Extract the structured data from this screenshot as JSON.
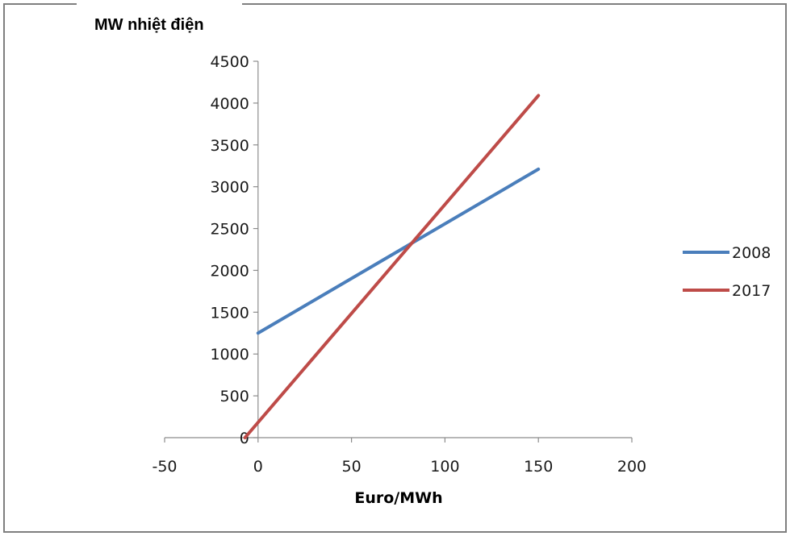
{
  "chart_data": {
    "type": "line",
    "title": "",
    "ylabel": "MW nhiệt điện",
    "xlabel": "Euro/MWh",
    "xlim": [
      -50,
      200
    ],
    "ylim": [
      0,
      4500
    ],
    "x_ticks": [
      -50,
      0,
      50,
      100,
      150,
      200
    ],
    "y_ticks": [
      0,
      500,
      1000,
      1500,
      2000,
      2500,
      3000,
      3500,
      4000,
      4500
    ],
    "grid": false,
    "legend_position": "right",
    "series": [
      {
        "name": "2008",
        "color": "#4a7ebb",
        "points": [
          [
            0,
            1250
          ],
          [
            150,
            3210
          ]
        ]
      },
      {
        "name": "2017",
        "color": "#be4b48",
        "points": [
          [
            -7,
            0
          ],
          [
            150,
            4090
          ]
        ]
      }
    ]
  }
}
